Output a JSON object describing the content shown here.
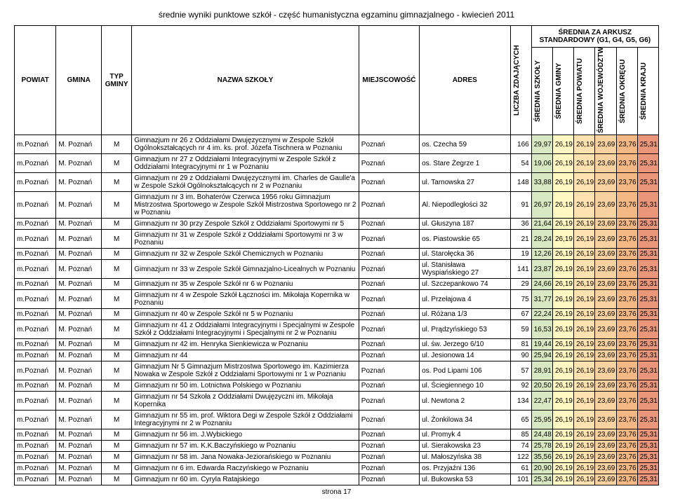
{
  "title": "średnie wyniki punktowe szkół - część humanistyczna egzaminu gimnazjalnego - kwiecień 2011",
  "super_header": "ŚREDNIA ZA ARKUSZ STANDARDOWY (G1, G4, G5, G6)",
  "footer": "strona 17",
  "columns": {
    "powiat": "POWIAT",
    "gmina": "GMINA",
    "typ": "TYP GMINY",
    "nazwa": "NAZWA SZKOŁY",
    "miejscowosc": "MIEJSCOWOŚĆ",
    "adres": "ADRES",
    "liczba": "LICZBA ZDAJĄCYCH",
    "avg": [
      "ŚREDNIA SZKOŁY",
      "ŚREDNIA GMINY",
      "ŚREDNIA POWIATU",
      "ŚREDNIA WOJEWÓDZTWA",
      "ŚREDNIA OKRĘGU",
      "ŚREDNIA KRAJU"
    ]
  },
  "colors": {
    "s": [
      "#d7e8c3",
      "#fff8c2",
      "#ffe2b0",
      "#f7d1a0",
      "#f4b884",
      "#e9967a"
    ]
  },
  "rows": [
    {
      "pow": "m.Poznań",
      "gmi": "M. Poznań",
      "typ": "M",
      "naz": "Gimnazjum nr 26 z Oddziałami Dwujęzycznymi w Zespole Szkół Ogólnokształcących nr 4 im. ks. prof. Józefa Tischnera w Poznaniu",
      "mie": "Poznań",
      "adr": "os. Czecha 59",
      "lic": "166",
      "v": [
        "29,97",
        "26,19",
        "26,19",
        "23,69",
        "23,76",
        "25,31"
      ]
    },
    {
      "pow": "m.Poznań",
      "gmi": "M. Poznań",
      "typ": "M",
      "naz": "Gimnazjum nr 27 z Oddziałami Integracyjnymi w Zespole Szkół z Oddziałami Integracyjnymi nr 1 w Poznaniu",
      "mie": "Poznań",
      "adr": "os. Stare Żegrze 1",
      "lic": "54",
      "v": [
        "19,06",
        "26,19",
        "26,19",
        "23,69",
        "23,76",
        "25,31"
      ]
    },
    {
      "pow": "m.Poznań",
      "gmi": "M. Poznań",
      "typ": "M",
      "naz": "Gimnazjum nr 29 z Oddziałami Dwujęzycznymi im. Charles de Gaulle'a w Zespole Szkół Ogólnokształcących nr 2 w Poznaniu",
      "mie": "Poznań",
      "adr": "ul. Tarnowska 27",
      "lic": "148",
      "v": [
        "33,88",
        "26,19",
        "26,19",
        "23,69",
        "23,76",
        "25,31"
      ]
    },
    {
      "pow": "m.Poznań",
      "gmi": "M. Poznań",
      "typ": "M",
      "naz": "Gimnazjum nr 3 im. Bohaterów Czerwca 1956 roku Gimnazjum Mistrzostwa Sportowego w Zespole Szkół Mistrzostwa Sportowego nr 2 w Poznaniu",
      "mie": "Poznań",
      "adr": "Al. Niepodległości 32",
      "lic": "91",
      "v": [
        "26,97",
        "26,19",
        "26,19",
        "23,69",
        "23,76",
        "25,31"
      ]
    },
    {
      "pow": "m.Poznań",
      "gmi": "M. Poznań",
      "typ": "M",
      "naz": "Gimnazjum nr 30 przy Zespole Szkół z Oddziałami Sportowymi nr 5",
      "mie": "Poznań",
      "adr": "ul. Głuszyna 187",
      "lic": "36",
      "v": [
        "21,64",
        "26,19",
        "26,19",
        "23,69",
        "23,76",
        "25,31"
      ]
    },
    {
      "pow": "m.Poznań",
      "gmi": "M. Poznań",
      "typ": "M",
      "naz": "Gimnazjum nr 31 w Zespole Szkół z Oddziałami Sportowymi nr 3 w Poznaniu",
      "mie": "Poznań",
      "adr": "os. Piastowskie 65",
      "lic": "21",
      "v": [
        "28,24",
        "26,19",
        "26,19",
        "23,69",
        "23,76",
        "25,31"
      ]
    },
    {
      "pow": "m.Poznań",
      "gmi": "M. Poznań",
      "typ": "M",
      "naz": "Gimnazjum nr 32 w Zespole Szkół Chemicznych w Poznaniu",
      "mie": "Poznań",
      "adr": "ul. Starołęcka 36",
      "lic": "19",
      "v": [
        "12,26",
        "26,19",
        "26,19",
        "23,69",
        "23,76",
        "25,31"
      ]
    },
    {
      "pow": "m.Poznań",
      "gmi": "M. Poznań",
      "typ": "M",
      "naz": "Gimnazjum nr 33 w Zespole Szkół Gimnazjalno-Licealnych w Poznaniu",
      "mie": "Poznań",
      "adr": "ul. Stanisława Wyspiańskiego 27",
      "lic": "141",
      "v": [
        "23,87",
        "26,19",
        "26,19",
        "23,69",
        "23,76",
        "25,31"
      ]
    },
    {
      "pow": "m.Poznań",
      "gmi": "M. Poznań",
      "typ": "M",
      "naz": "Gimnazjum nr 35 w Zespole Szkół nr 6 w Poznaniu",
      "mie": "Poznań",
      "adr": "ul. Szczepankowo 74",
      "lic": "29",
      "v": [
        "24,66",
        "26,19",
        "26,19",
        "23,69",
        "23,76",
        "25,31"
      ]
    },
    {
      "pow": "m.Poznań",
      "gmi": "M. Poznań",
      "typ": "M",
      "naz": "Gimnazjum nr 4 w Zespole Szkół Łączności im. Mikołaja Kopernika w Poznaniu",
      "mie": "Poznań",
      "adr": "ul. Przełajowa 4",
      "lic": "75",
      "v": [
        "31,77",
        "26,19",
        "26,19",
        "23,69",
        "23,76",
        "25,31"
      ]
    },
    {
      "pow": "m.Poznań",
      "gmi": "M. Poznań",
      "typ": "M",
      "naz": "Gimnazjum nr 40 w Zespole Szkół nr 5 w Poznaniu",
      "mie": "Poznań",
      "adr": "ul. Różana 1/3",
      "lic": "67",
      "v": [
        "22,24",
        "26,19",
        "26,19",
        "23,69",
        "23,76",
        "25,31"
      ]
    },
    {
      "pow": "m.Poznań",
      "gmi": "M. Poznań",
      "typ": "M",
      "naz": "Gimnazjum nr 41 z Oddziałami Integracyjnymi i Specjalnymi w Zespole Szkół z Oddziałami Integracyjnymi i Specjalnymi nr 2 w Poznaniu",
      "mie": "Poznań",
      "adr": "ul. Prądzyńskiego 53",
      "lic": "59",
      "v": [
        "16,53",
        "26,19",
        "26,19",
        "23,69",
        "23,76",
        "25,31"
      ]
    },
    {
      "pow": "m.Poznań",
      "gmi": "M. Poznań",
      "typ": "M",
      "naz": "Gimnazjum nr 42 im. Henryka Sienkiewicza w Poznaniu",
      "mie": "Poznań",
      "adr": "ul. św. Jerzego 6/10",
      "lic": "81",
      "v": [
        "19,44",
        "26,19",
        "26,19",
        "23,69",
        "23,76",
        "25,31"
      ]
    },
    {
      "pow": "m.Poznań",
      "gmi": "M. Poznań",
      "typ": "M",
      "naz": "Gimnazjum nr 44",
      "mie": "Poznań",
      "adr": "ul. Jesionowa 14",
      "lic": "90",
      "v": [
        "25,94",
        "26,19",
        "26,19",
        "23,69",
        "23,76",
        "25,31"
      ]
    },
    {
      "pow": "m.Poznań",
      "gmi": "M. Poznań",
      "typ": "M",
      "naz": "Gimnazjum Nr 5 Gimnazjum Mistrzostwa Sportowego im. Kazimierza Nowaka w Zespole Szkół z Oddziałami Sportowymi nr 1 w Poznaniu",
      "mie": "Poznań",
      "adr": "os. Pod Lipami 106",
      "lic": "57",
      "v": [
        "28,91",
        "26,19",
        "26,19",
        "23,69",
        "23,76",
        "25,31"
      ]
    },
    {
      "pow": "m.Poznań",
      "gmi": "M. Poznań",
      "typ": "M",
      "naz": "Gimnazjum nr 50 im. Lotnictwa Polskiego w Poznaniu",
      "mie": "Poznań",
      "adr": "ul. Ściegiennego 10",
      "lic": "92",
      "v": [
        "20,50",
        "26,19",
        "26,19",
        "23,69",
        "23,76",
        "25,31"
      ]
    },
    {
      "pow": "m.Poznań",
      "gmi": "M. Poznań",
      "typ": "M",
      "naz": "Gimnazjum nr 54 Szkoła z Oddziałami Dwujęzyczni im. Mikołaja Kopernika",
      "mie": "Poznań",
      "adr": "ul. Newtona 2",
      "lic": "134",
      "v": [
        "22,47",
        "26,19",
        "26,19",
        "23,69",
        "23,76",
        "25,31"
      ]
    },
    {
      "pow": "m.Poznań",
      "gmi": "M. Poznań",
      "typ": "M",
      "naz": "Gimnazjum nr 55 im. prof. Wiktora Degi w Zespole Szkół z Oddziałami Integracyjnymi nr 2 w Poznaniu",
      "mie": "Poznań",
      "adr": "ul. Żonkilowa 34",
      "lic": "65",
      "v": [
        "25,95",
        "26,19",
        "26,19",
        "23,69",
        "23,76",
        "25,31"
      ]
    },
    {
      "pow": "m.Poznań",
      "gmi": "M. Poznań",
      "typ": "M",
      "naz": "Gimnazjum nr 56 im. J.Wybickiego",
      "mie": "Poznań",
      "adr": "ul. Promyk 4",
      "lic": "85",
      "v": [
        "24,48",
        "26,19",
        "26,19",
        "23,69",
        "23,76",
        "25,31"
      ]
    },
    {
      "pow": "m.Poznań",
      "gmi": "M. Poznań",
      "typ": "M",
      "naz": "Gimnazjum nr 57 im. K.K.Baczyńskiego w Poznaniu",
      "mie": "Poznań",
      "adr": "ul. Sierakowska 23",
      "lic": "74",
      "v": [
        "25,78",
        "26,19",
        "26,19",
        "23,69",
        "23,76",
        "25,31"
      ]
    },
    {
      "pow": "m.Poznań",
      "gmi": "M. Poznań",
      "typ": "M",
      "naz": "Gimnazjum nr 58 im. Jana Nowaka-Jeziorańskiego w Poznaniu",
      "mie": "Poznań",
      "adr": "ul. Małoszyńska 38",
      "lic": "122",
      "v": [
        "35,56",
        "26,19",
        "26,19",
        "23,69",
        "23,76",
        "25,31"
      ]
    },
    {
      "pow": "m.Poznań",
      "gmi": "M. Poznań",
      "typ": "M",
      "naz": "Gimnazjum nr 6 im. Edwarda Raczyńskiego w Poznaniu",
      "mie": "Poznań",
      "adr": "os. Przyjaźni 136",
      "lic": "61",
      "v": [
        "20,90",
        "26,19",
        "26,19",
        "23,69",
        "23,76",
        "25,31"
      ]
    },
    {
      "pow": "m.Poznań",
      "gmi": "M. Poznań",
      "typ": "M",
      "naz": "Gimnazjum nr 60 im. Cyryla Ratajskiego",
      "mie": "Poznań",
      "adr": "ul. Bukowska 53",
      "lic": "101",
      "v": [
        "25,34",
        "26,19",
        "26,19",
        "23,69",
        "23,76",
        "25,31"
      ]
    }
  ]
}
